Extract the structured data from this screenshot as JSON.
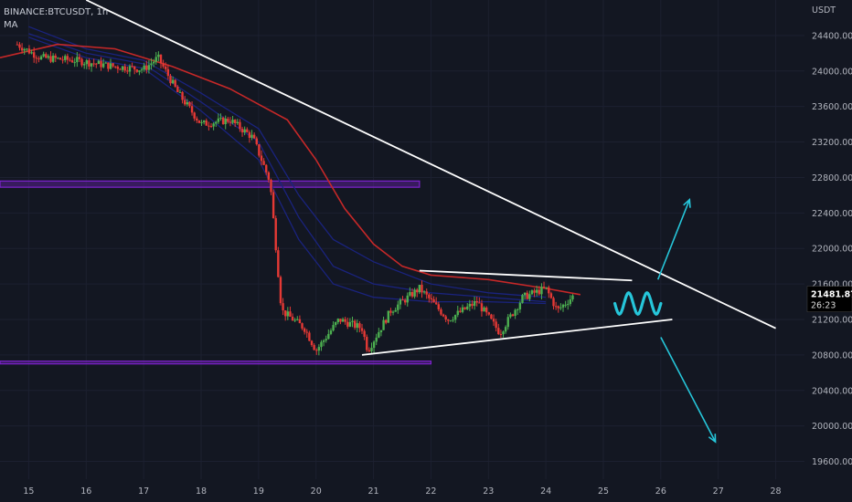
{
  "header": {
    "symbol": "BINANCE:BTCUSDT, 1h",
    "indicator": "MA"
  },
  "colors": {
    "background": "#131722",
    "up_candle": "#4caf50",
    "down_candle": "#e53935",
    "ma_slow": "#c62828",
    "ma_fast": "#1a237e",
    "trendline": "#ffffff",
    "zone": "#7e22ce",
    "projection": "#26c6da",
    "price_tag": "#000000"
  },
  "chart_data": {
    "type": "candlestick",
    "currency": "USDT",
    "ylim": [
      19400,
      24800
    ],
    "yticks": [
      19600,
      20000,
      20400,
      20800,
      21200,
      21600,
      22000,
      22400,
      22800,
      23200,
      23600,
      24000,
      24400
    ],
    "ytick_labels": [
      "19600.00",
      "20000.00",
      "20400.00",
      "20800.00",
      "21200.00",
      "21600.00",
      "22000.00",
      "22400.00",
      "22800.00",
      "23200.00",
      "23600.00",
      "24000.00",
      "24400.00"
    ],
    "xlim": [
      14.5,
      28.5
    ],
    "xticks": [
      15,
      16,
      17,
      18,
      19,
      20,
      21,
      22,
      23,
      24,
      25,
      26,
      27,
      28
    ],
    "xtick_labels": [
      "15",
      "16",
      "17",
      "18",
      "19",
      "20",
      "21",
      "22",
      "23",
      "24",
      "25",
      "26",
      "27",
      "28"
    ],
    "last_price": "21481.87",
    "countdown": "26:23",
    "price_path": [
      [
        14.8,
        24300
      ],
      [
        15.2,
        24150
      ],
      [
        15.8,
        24120
      ],
      [
        16.5,
        24050
      ],
      [
        17.0,
        24020
      ],
      [
        17.25,
        24150
      ],
      [
        17.6,
        23750
      ],
      [
        18.0,
        23400
      ],
      [
        18.5,
        23450
      ],
      [
        18.9,
        23250
      ],
      [
        19.2,
        22750
      ],
      [
        19.4,
        21300
      ],
      [
        19.8,
        21100
      ],
      [
        20.0,
        20850
      ],
      [
        20.4,
        21200
      ],
      [
        20.8,
        21100
      ],
      [
        20.9,
        20850
      ],
      [
        21.3,
        21300
      ],
      [
        21.8,
        21550
      ],
      [
        22.3,
        21200
      ],
      [
        22.8,
        21400
      ],
      [
        23.2,
        21050
      ],
      [
        23.6,
        21450
      ],
      [
        24.0,
        21550
      ],
      [
        24.2,
        21300
      ],
      [
        24.5,
        21480
      ]
    ],
    "ma_slow": [
      [
        14.5,
        24150
      ],
      [
        15.5,
        24300
      ],
      [
        16.5,
        24250
      ],
      [
        17.5,
        24050
      ],
      [
        18.5,
        23800
      ],
      [
        19.5,
        23450
      ],
      [
        20.0,
        23000
      ],
      [
        20.5,
        22450
      ],
      [
        21.0,
        22050
      ],
      [
        21.5,
        21800
      ],
      [
        22.0,
        21700
      ],
      [
        23.0,
        21650
      ],
      [
        24.0,
        21550
      ],
      [
        24.6,
        21480
      ]
    ],
    "ma_fast": [
      [
        [
          15.0,
          24500
        ],
        [
          16.0,
          24250
        ],
        [
          17.0,
          24120
        ],
        [
          18.0,
          23750
        ],
        [
          19.0,
          23350
        ],
        [
          19.7,
          22600
        ],
        [
          20.3,
          22100
        ],
        [
          21.0,
          21850
        ],
        [
          22.0,
          21600
        ],
        [
          23.0,
          21500
        ],
        [
          24.0,
          21450
        ]
      ],
      [
        [
          15.0,
          24420
        ],
        [
          16.0,
          24200
        ],
        [
          17.0,
          24080
        ],
        [
          18.0,
          23650
        ],
        [
          19.0,
          23200
        ],
        [
          19.7,
          22350
        ],
        [
          20.3,
          21800
        ],
        [
          21.0,
          21600
        ],
        [
          22.0,
          21500
        ],
        [
          23.0,
          21450
        ],
        [
          24.0,
          21400
        ]
      ],
      [
        [
          15.0,
          24380
        ],
        [
          16.0,
          24150
        ],
        [
          17.0,
          24030
        ],
        [
          18.0,
          23550
        ],
        [
          19.0,
          23000
        ],
        [
          19.7,
          22100
        ],
        [
          20.3,
          21600
        ],
        [
          21.0,
          21450
        ],
        [
          22.0,
          21400
        ],
        [
          23.0,
          21400
        ],
        [
          24.0,
          21380
        ]
      ]
    ],
    "trendlines": [
      {
        "from": [
          16.0,
          24800
        ],
        "to": [
          28.0,
          21100
        ]
      },
      {
        "from": [
          21.8,
          21750
        ],
        "to": [
          25.5,
          21640
        ]
      },
      {
        "from": [
          20.8,
          20800
        ],
        "to": [
          26.2,
          21200
        ]
      }
    ],
    "zones": [
      {
        "from_x": 14.5,
        "to_x": 21.8,
        "y_top": 22760,
        "y_bottom": 22690
      },
      {
        "from_x": 14.5,
        "to_x": 22.0,
        "y_top": 20730,
        "y_bottom": 20700
      }
    ],
    "projection_wave": {
      "from": [
        25.2,
        21380
      ],
      "to": [
        26.0,
        21380
      ],
      "amplitude": 120
    },
    "arrows": [
      {
        "from": [
          25.95,
          21650
        ],
        "to": [
          26.5,
          22550
        ]
      },
      {
        "from": [
          26.0,
          21000
        ],
        "to": [
          26.95,
          19820
        ]
      }
    ]
  }
}
